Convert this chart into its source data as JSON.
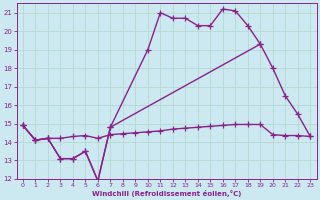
{
  "xlabel": "Windchill (Refroidissement éolien,°C)",
  "xlim": [
    -0.5,
    23.5
  ],
  "ylim": [
    12,
    21.5
  ],
  "yticks": [
    12,
    13,
    14,
    15,
    16,
    17,
    18,
    19,
    20,
    21
  ],
  "xticks": [
    0,
    1,
    2,
    3,
    4,
    5,
    6,
    7,
    8,
    9,
    10,
    11,
    12,
    13,
    14,
    15,
    16,
    17,
    18,
    19,
    20,
    21,
    22,
    23
  ],
  "bg_color": "#cce8f0",
  "grid_color": "#b0d8c8",
  "line_color": "#882288",
  "curves": [
    {
      "x": [
        0,
        1,
        2,
        3,
        4,
        5,
        6,
        7,
        10,
        11,
        12,
        13,
        14,
        15,
        16,
        17,
        18,
        19
      ],
      "y": [
        14.9,
        14.1,
        14.2,
        13.1,
        13.1,
        13.5,
        11.9,
        14.8,
        19.0,
        21.0,
        20.7,
        20.7,
        20.3,
        20.3,
        21.2,
        21.1,
        20.3,
        19.3
      ]
    },
    {
      "x": [
        0,
        1,
        2,
        3,
        4,
        5,
        6,
        7,
        19,
        20,
        21,
        22,
        23
      ],
      "y": [
        14.9,
        14.1,
        14.2,
        13.1,
        13.1,
        13.5,
        11.9,
        14.8,
        19.3,
        18.0,
        16.5,
        15.5,
        14.3
      ]
    },
    {
      "x": [
        0,
        1,
        2,
        3,
        4,
        5,
        6,
        7,
        8,
        9,
        10,
        11,
        12,
        13,
        14,
        15,
        16,
        17,
        18,
        19,
        20,
        21,
        22,
        23
      ],
      "y": [
        14.9,
        14.1,
        14.2,
        14.2,
        14.3,
        14.35,
        14.2,
        14.4,
        14.45,
        14.5,
        14.55,
        14.6,
        14.7,
        14.75,
        14.8,
        14.85,
        14.9,
        14.95,
        14.95,
        14.95,
        14.4,
        14.35,
        14.35,
        14.3
      ]
    }
  ],
  "marker": "+",
  "markersize": 4,
  "linewidth": 1.0
}
